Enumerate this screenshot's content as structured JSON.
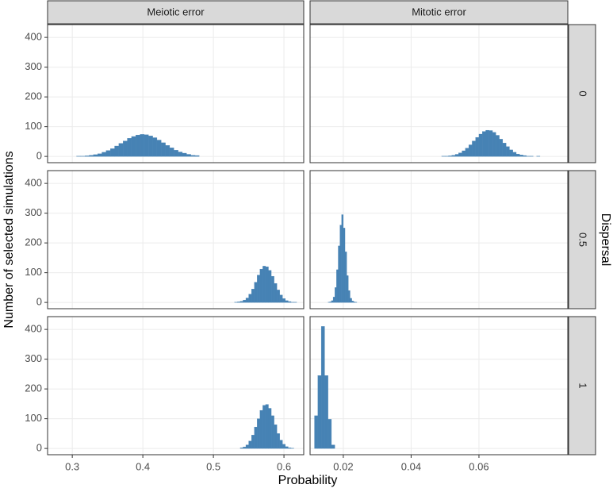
{
  "figure": {
    "x_label": "Probability",
    "y_label": "Number of selected simulations",
    "facet_row_label": "Dispersal",
    "facet_columns": [
      "Meiotic error",
      "Mitotic error"
    ],
    "facet_rows": [
      "0",
      "0.5",
      "1"
    ]
  },
  "chart_data": [
    {
      "type": "histogram",
      "color": "#4682b4",
      "grid": true,
      "bins": [
        0.3,
        0.306,
        0.312,
        0.318,
        0.324,
        0.33,
        0.336,
        0.342,
        0.348,
        0.354,
        0.36,
        0.366,
        0.372,
        0.378,
        0.384,
        0.39,
        0.396,
        0.402,
        0.408,
        0.414,
        0.42,
        0.426,
        0.432,
        0.438,
        0.444,
        0.45,
        0.456,
        0.462,
        0.468,
        0.474,
        0.48
      ],
      "values": [
        0,
        1,
        1,
        2,
        4,
        6,
        9,
        14,
        20,
        26,
        35,
        44,
        52,
        61,
        67,
        72,
        74,
        73,
        69,
        63,
        55,
        46,
        37,
        29,
        21,
        15,
        11,
        7,
        4,
        3
      ],
      "xlim": [
        0.265,
        0.628
      ],
      "xticks": [
        0.3,
        0.4,
        0.5,
        0.6
      ],
      "ylim": [
        -21,
        443
      ],
      "yticks": [
        0,
        100,
        200,
        300,
        400
      ]
    },
    {
      "type": "histogram",
      "color": "#4682b4",
      "grid": true,
      "bins": [
        0.049,
        0.05,
        0.051,
        0.052,
        0.053,
        0.054,
        0.055,
        0.056,
        0.057,
        0.058,
        0.059,
        0.06,
        0.061,
        0.062,
        0.063,
        0.064,
        0.065,
        0.066,
        0.067,
        0.068,
        0.069,
        0.07,
        0.071,
        0.072,
        0.073,
        0.074,
        0.075,
        0.076,
        0.077,
        0.078,
        0.079
      ],
      "values": [
        1,
        1,
        2,
        4,
        7,
        12,
        19,
        28,
        39,
        52,
        64,
        75,
        84,
        88,
        87,
        81,
        71,
        58,
        45,
        33,
        22,
        14,
        8,
        5,
        3,
        1,
        1,
        0,
        1,
        0
      ],
      "xlim": [
        0.0102,
        0.0862
      ],
      "xticks": [
        0.02,
        0.04,
        0.06
      ],
      "ylim": [
        -21,
        443
      ],
      "yticks": [
        0,
        100,
        200,
        300,
        400
      ]
    },
    {
      "type": "histogram",
      "color": "#4682b4",
      "grid": true,
      "bins": [
        0.53,
        0.534,
        0.538,
        0.542,
        0.546,
        0.55,
        0.554,
        0.558,
        0.562,
        0.566,
        0.57,
        0.574,
        0.578,
        0.582,
        0.586,
        0.59,
        0.594,
        0.598,
        0.602,
        0.606,
        0.61,
        0.614,
        0.618
      ],
      "values": [
        1,
        2,
        4,
        8,
        15,
        28,
        45,
        68,
        92,
        112,
        122,
        120,
        108,
        88,
        64,
        42,
        25,
        13,
        6,
        3,
        1,
        1
      ],
      "xlim": [
        0.265,
        0.628
      ],
      "xticks": [
        0.3,
        0.4,
        0.5,
        0.6
      ],
      "ylim": [
        -21,
        443
      ],
      "yticks": [
        0,
        100,
        200,
        300,
        400
      ]
    },
    {
      "type": "histogram",
      "color": "#4682b4",
      "grid": true,
      "bins": [
        0.0155,
        0.016,
        0.0165,
        0.017,
        0.0175,
        0.018,
        0.0185,
        0.019,
        0.0195,
        0.02,
        0.0205,
        0.021,
        0.0215,
        0.022,
        0.0225,
        0.023,
        0.0235,
        0.024,
        0.0245
      ],
      "values": [
        1,
        2,
        6,
        18,
        50,
        110,
        190,
        260,
        295,
        250,
        170,
        90,
        40,
        14,
        5,
        2,
        1,
        0
      ],
      "xlim": [
        0.0102,
        0.0862
      ],
      "xticks": [
        0.02,
        0.04,
        0.06
      ],
      "ylim": [
        -21,
        443
      ],
      "yticks": [
        0,
        100,
        200,
        300,
        400
      ]
    },
    {
      "type": "histogram",
      "color": "#4682b4",
      "grid": true,
      "bins": [
        0.538,
        0.542,
        0.546,
        0.55,
        0.554,
        0.558,
        0.562,
        0.566,
        0.57,
        0.574,
        0.578,
        0.582,
        0.586,
        0.59,
        0.594,
        0.598,
        0.602,
        0.606,
        0.61,
        0.614
      ],
      "values": [
        2,
        5,
        12,
        25,
        45,
        72,
        100,
        128,
        145,
        148,
        135,
        110,
        80,
        50,
        28,
        14,
        6,
        2,
        1
      ],
      "xlim": [
        0.265,
        0.628
      ],
      "xticks": [
        0.3,
        0.4,
        0.5,
        0.6
      ],
      "ylim": [
        -21,
        443
      ],
      "yticks": [
        0,
        100,
        200,
        300,
        400
      ]
    },
    {
      "type": "histogram",
      "color": "#4682b4",
      "grid": true,
      "bins": [
        0.0115,
        0.0125,
        0.0135,
        0.0145,
        0.0155,
        0.0165,
        0.0175
      ],
      "values": [
        110,
        245,
        410,
        245,
        98,
        12
      ],
      "xlim": [
        0.0102,
        0.0862
      ],
      "xticks": [
        0.02,
        0.04,
        0.06
      ],
      "ylim": [
        -21,
        443
      ],
      "yticks": [
        0,
        100,
        200,
        300,
        400
      ]
    }
  ]
}
